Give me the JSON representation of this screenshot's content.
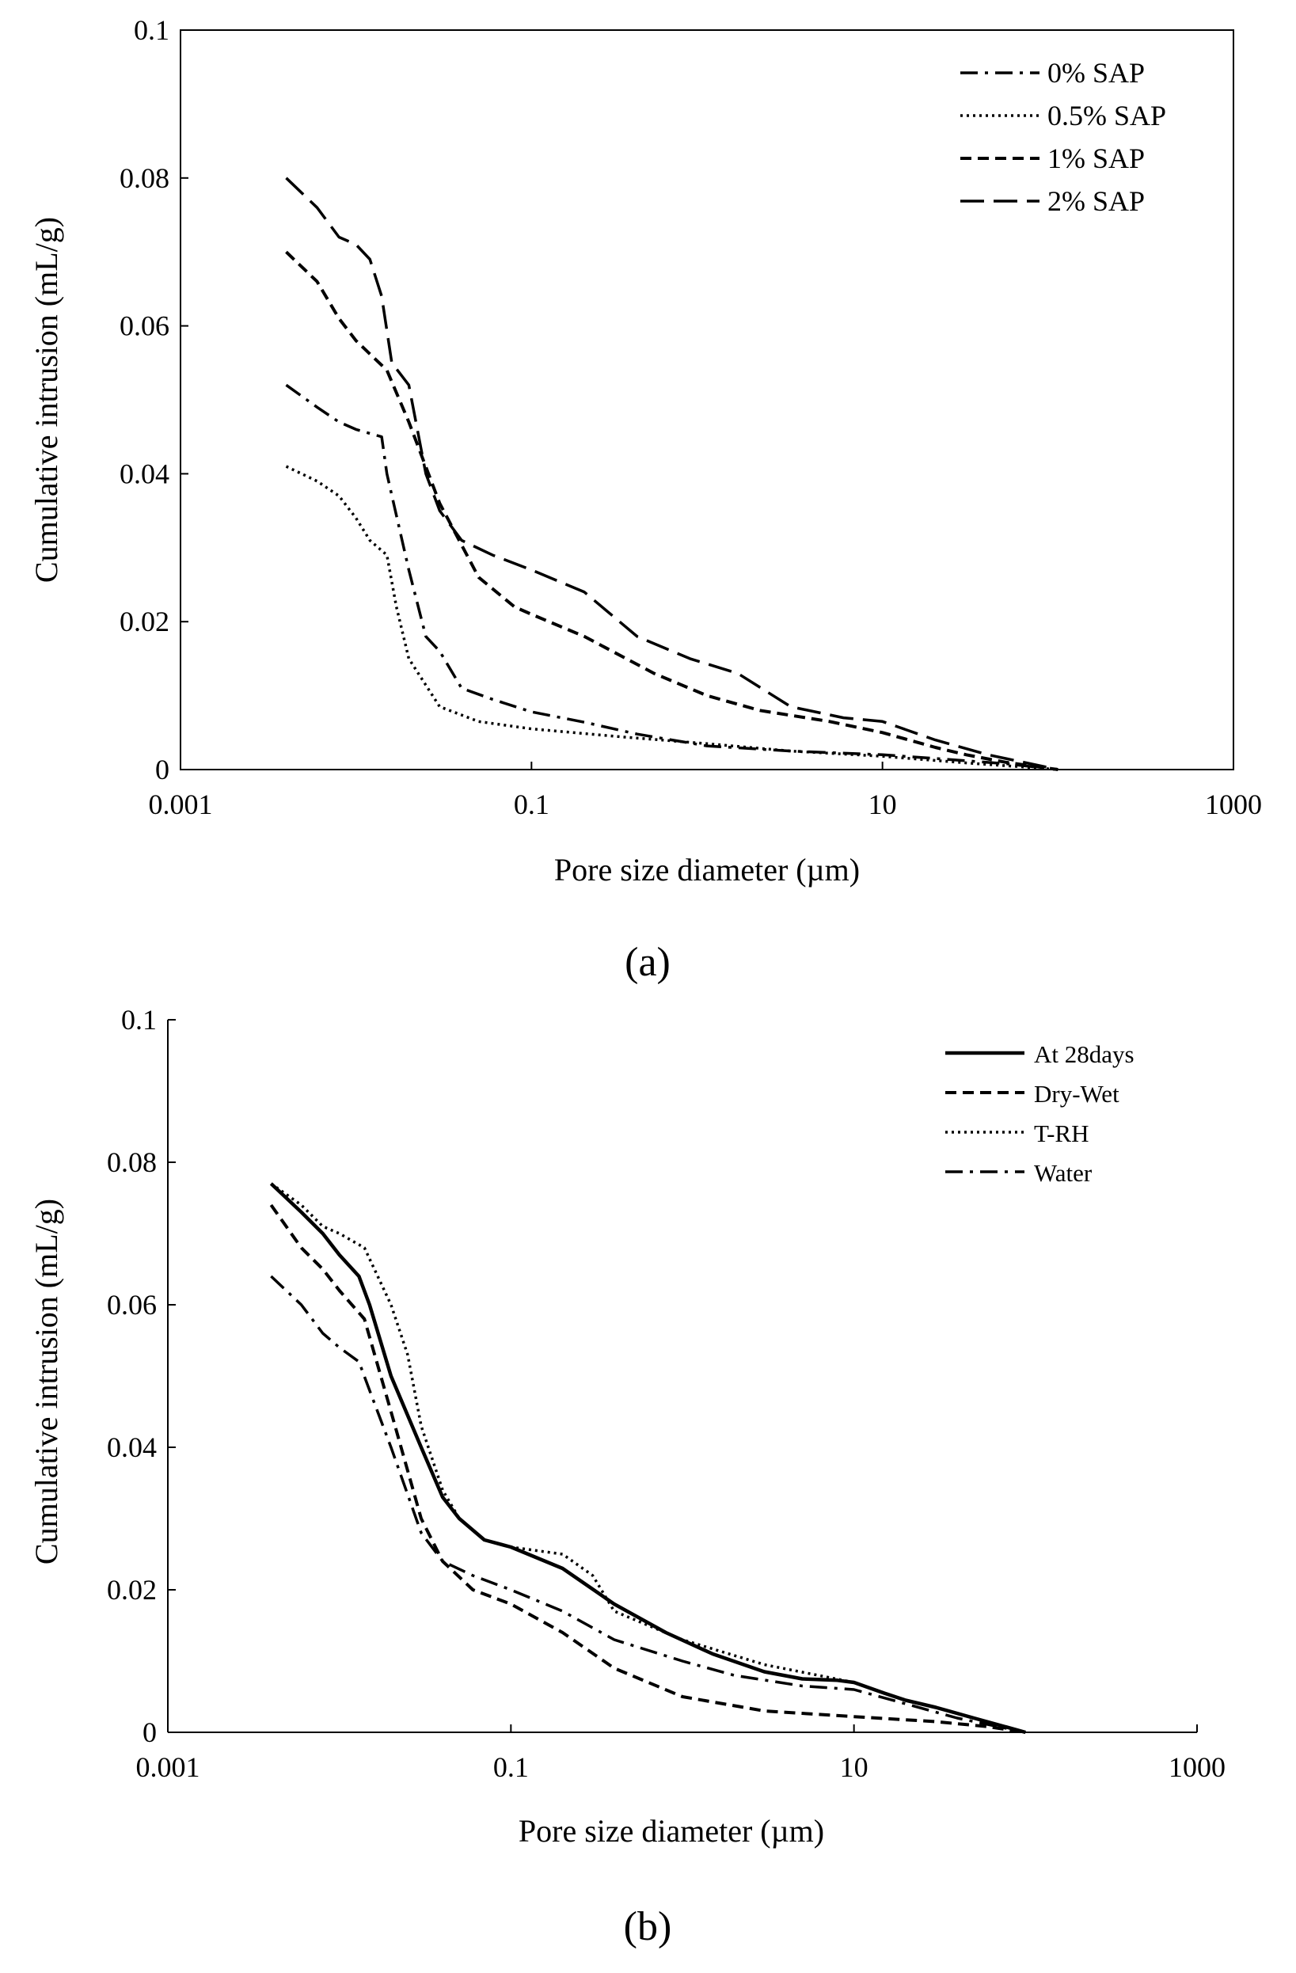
{
  "chart_data": [
    {
      "id": "a",
      "type": "line",
      "panel_label": "(a)",
      "xlabel": "Pore size diameter (µm)",
      "ylabel": "Cumulative intrusion (mL/g)",
      "xscale": "log",
      "xlim": [
        0.001,
        1000
      ],
      "ylim": [
        0,
        0.1
      ],
      "xticks": [
        "0.001",
        "0.1",
        "10",
        "1000"
      ],
      "yticks": [
        "0",
        "0.02",
        "0.04",
        "0.06",
        "0.08",
        "0.1"
      ],
      "legend_position": "top-right",
      "grid": false,
      "series": [
        {
          "name": "0% SAP",
          "dash": "dashdot",
          "x": [
            0.004,
            0.006,
            0.008,
            0.01,
            0.014,
            0.015,
            0.02,
            0.025,
            0.03,
            0.04,
            0.06,
            0.1,
            0.2,
            0.4,
            1,
            3,
            10,
            20,
            50,
            100
          ],
          "y": [
            0.052,
            0.049,
            0.047,
            0.046,
            0.045,
            0.04,
            0.027,
            0.018,
            0.016,
            0.011,
            0.0095,
            0.0078,
            0.0064,
            0.0048,
            0.0032,
            0.0025,
            0.002,
            0.0015,
            0.0008,
            0
          ]
        },
        {
          "name": "0.5% SAP",
          "dash": "dotted",
          "x": [
            0.004,
            0.006,
            0.008,
            0.01,
            0.012,
            0.015,
            0.017,
            0.02,
            0.03,
            0.05,
            0.1,
            0.3,
            1,
            3,
            10,
            30,
            60,
            100
          ],
          "y": [
            0.041,
            0.039,
            0.037,
            0.034,
            0.031,
            0.029,
            0.022,
            0.015,
            0.0085,
            0.0065,
            0.0055,
            0.0045,
            0.0035,
            0.0025,
            0.0018,
            0.0009,
            0.0004,
            0
          ]
        },
        {
          "name": "1% SAP",
          "dash": "dashed",
          "x": [
            0.004,
            0.006,
            0.008,
            0.01,
            0.015,
            0.02,
            0.03,
            0.05,
            0.08,
            0.1,
            0.2,
            0.5,
            1,
            2,
            5,
            10,
            20,
            30,
            50,
            100
          ],
          "y": [
            0.07,
            0.066,
            0.061,
            0.058,
            0.054,
            0.047,
            0.036,
            0.026,
            0.022,
            0.021,
            0.018,
            0.013,
            0.01,
            0.008,
            0.0065,
            0.005,
            0.003,
            0.002,
            0.001,
            0
          ]
        },
        {
          "name": "2% SAP",
          "dash": "longdash",
          "x": [
            0.004,
            0.006,
            0.008,
            0.01,
            0.012,
            0.014,
            0.016,
            0.02,
            0.025,
            0.03,
            0.04,
            0.06,
            0.1,
            0.2,
            0.4,
            0.8,
            1.5,
            3,
            6,
            10,
            20,
            40,
            100
          ],
          "y": [
            0.08,
            0.076,
            0.072,
            0.071,
            0.069,
            0.064,
            0.055,
            0.052,
            0.04,
            0.035,
            0.031,
            0.029,
            0.027,
            0.024,
            0.018,
            0.015,
            0.013,
            0.0085,
            0.007,
            0.0065,
            0.004,
            0.002,
            0
          ]
        }
      ]
    },
    {
      "id": "b",
      "type": "line",
      "panel_label": "(b)",
      "xlabel": "Pore size diameter (µm)",
      "ylabel": "Cumulative intrusion (mL/g)",
      "xscale": "log",
      "xlim": [
        0.001,
        1000
      ],
      "ylim": [
        0,
        0.1
      ],
      "xticks": [
        "0.001",
        "0.1",
        "10",
        "1000"
      ],
      "yticks": [
        "0",
        "0.02",
        "0.04",
        "0.06",
        "0.08",
        "0.1"
      ],
      "legend_position": "top-right",
      "grid": false,
      "series": [
        {
          "name": "At 28days",
          "dash": "solid",
          "x": [
            0.004,
            0.006,
            0.008,
            0.01,
            0.013,
            0.015,
            0.02,
            0.03,
            0.04,
            0.05,
            0.07,
            0.1,
            0.2,
            0.4,
            0.8,
            1.5,
            3,
            5,
            8,
            10,
            15,
            20,
            30,
            50,
            100
          ],
          "y": [
            0.077,
            0.073,
            0.07,
            0.067,
            0.064,
            0.06,
            0.05,
            0.04,
            0.033,
            0.03,
            0.027,
            0.026,
            0.023,
            0.018,
            0.014,
            0.011,
            0.0085,
            0.0075,
            0.0073,
            0.007,
            0.0055,
            0.0045,
            0.0035,
            0.002,
            0
          ]
        },
        {
          "name": "Dry-Wet",
          "dash": "dashed",
          "x": [
            0.004,
            0.006,
            0.008,
            0.01,
            0.014,
            0.02,
            0.03,
            0.04,
            0.06,
            0.1,
            0.2,
            0.4,
            1,
            3,
            10,
            30,
            60,
            100
          ],
          "y": [
            0.074,
            0.068,
            0.065,
            0.062,
            0.058,
            0.045,
            0.03,
            0.024,
            0.02,
            0.018,
            0.014,
            0.009,
            0.005,
            0.003,
            0.0022,
            0.0015,
            0.0008,
            0
          ]
        },
        {
          "name": "T-RH",
          "dash": "dotted",
          "x": [
            0.004,
            0.006,
            0.008,
            0.01,
            0.014,
            0.02,
            0.025,
            0.03,
            0.04,
            0.05,
            0.07,
            0.1,
            0.2,
            0.3,
            0.4,
            1,
            3,
            10,
            20,
            30,
            50,
            100
          ],
          "y": [
            0.077,
            0.074,
            0.071,
            0.07,
            0.068,
            0.06,
            0.053,
            0.043,
            0.034,
            0.03,
            0.027,
            0.026,
            0.025,
            0.022,
            0.017,
            0.013,
            0.0095,
            0.007,
            0.0045,
            0.0035,
            0.002,
            0
          ]
        },
        {
          "name": "Water",
          "dash": "dashdot",
          "x": [
            0.004,
            0.006,
            0.008,
            0.01,
            0.013,
            0.015,
            0.02,
            0.03,
            0.04,
            0.06,
            0.1,
            0.2,
            0.4,
            1,
            2,
            5,
            10,
            20,
            40,
            100
          ],
          "y": [
            0.064,
            0.06,
            0.056,
            0.054,
            0.052,
            0.048,
            0.04,
            0.028,
            0.024,
            0.022,
            0.02,
            0.017,
            0.013,
            0.01,
            0.008,
            0.0065,
            0.006,
            0.004,
            0.002,
            0
          ]
        }
      ]
    }
  ]
}
